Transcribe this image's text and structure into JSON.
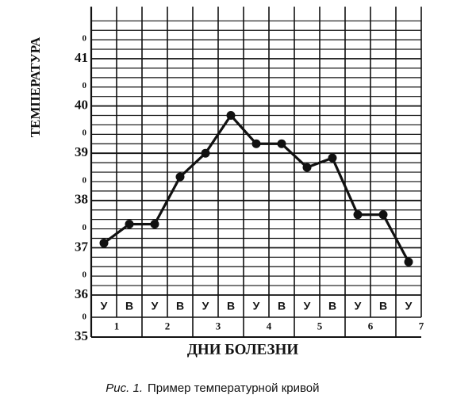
{
  "chart_data": {
    "type": "line",
    "y_axis_label": "ТЕМПЕРАТУРА",
    "x_axis_label": "ДНИ БОЛЕЗНИ",
    "caption": {
      "label": "Рис. 1.",
      "text": "Пример температурной кривой"
    },
    "categories": [
      "У",
      "В",
      "У",
      "В",
      "У",
      "В",
      "У",
      "В",
      "У",
      "В",
      "У",
      "В",
      "У"
    ],
    "days": [
      "1",
      "2",
      "3",
      "4",
      "5",
      "6",
      "7"
    ],
    "series": [
      {
        "name": "Температура",
        "color": "#111111",
        "values": [
          37.1,
          37.5,
          37.5,
          38.5,
          39.0,
          39.8,
          39.2,
          39.2,
          38.7,
          38.9,
          37.7,
          37.7,
          36.7
        ]
      }
    ],
    "ylim": [
      36,
      42.1
    ],
    "yticks": [
      35,
      36,
      37,
      38,
      39,
      40,
      41
    ],
    "y_tick_degree": "0",
    "grid": {
      "minor_step": 0.2
    }
  }
}
